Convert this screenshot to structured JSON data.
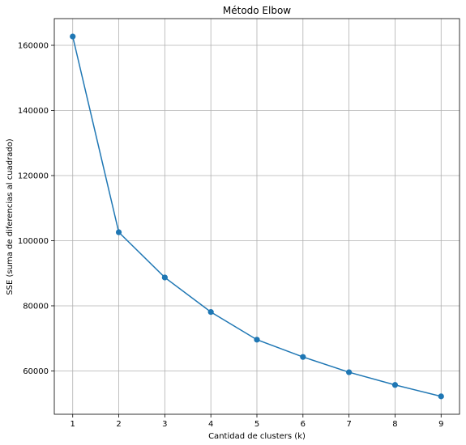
{
  "chart_data": {
    "type": "line",
    "title": "Método Elbow",
    "xlabel": "Cantidad de clusters (k)",
    "ylabel": "SSE (suma de diferencias al cuadrado)",
    "x": [
      1,
      2,
      3,
      4,
      5,
      6,
      7,
      8,
      9
    ],
    "series": [
      {
        "values": [
          162700,
          102600,
          88700,
          78100,
          69600,
          64300,
          59600,
          55700,
          52200
        ]
      }
    ],
    "xticks": [
      "1",
      "2",
      "3",
      "4",
      "5",
      "6",
      "7",
      "8",
      "9"
    ],
    "yticks": [
      "60000",
      "80000",
      "100000",
      "120000",
      "140000",
      "160000"
    ],
    "xlim": [
      0.6,
      9.4
    ],
    "ylim": [
      46700,
      168200
    ],
    "grid": true,
    "marker": "circle",
    "colors": {
      "line": "#1f77b4",
      "grid": "#b0b0b0",
      "axes": "#000000"
    }
  }
}
